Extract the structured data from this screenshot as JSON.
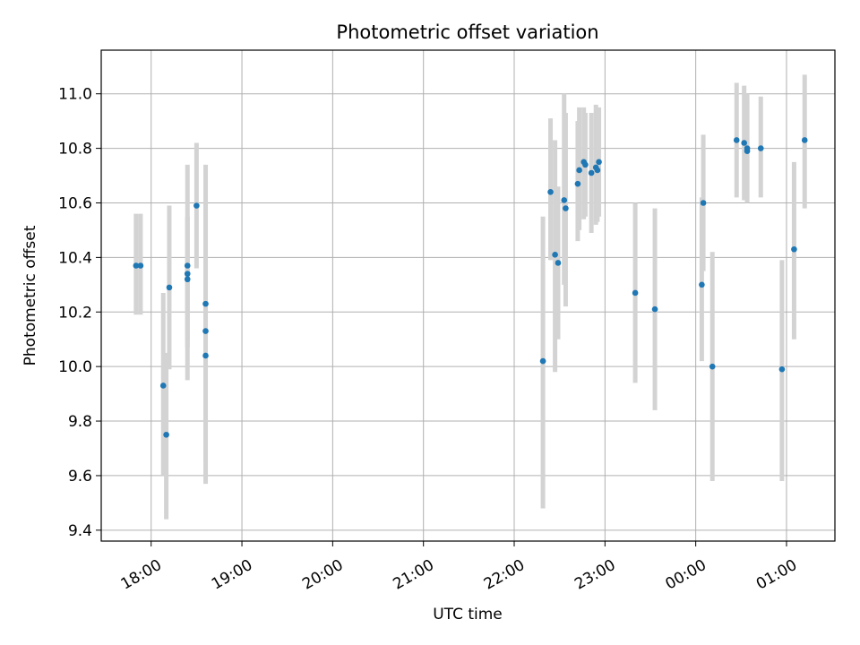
{
  "chart_data": {
    "type": "scatter",
    "title": "Photometric offset variation",
    "xlabel": "UTC time",
    "ylabel": "Photometric offset",
    "grid": true,
    "x_axis": {
      "type": "time",
      "range": [
        "17:27",
        "01:32"
      ],
      "ticks": [
        "18:00",
        "19:00",
        "20:00",
        "21:00",
        "22:00",
        "23:00",
        "00:00",
        "01:00"
      ]
    },
    "ylim": [
      9.36,
      11.16
    ],
    "y_ticks": [
      "9.4",
      "9.6",
      "9.8",
      "10.0",
      "10.2",
      "10.4",
      "10.6",
      "10.8",
      "11.0"
    ],
    "colors": {
      "marker": "#1f77b4",
      "errorbar": "#d3d3d3",
      "grid": "#b0b0b0"
    },
    "points": [
      {
        "x": "17:50",
        "y": 10.37,
        "err_low": 10.19,
        "err_high": 10.56
      },
      {
        "x": "17:53",
        "y": 10.37,
        "err_low": 10.19,
        "err_high": 10.56
      },
      {
        "x": "18:08",
        "y": 9.93,
        "err_low": 9.6,
        "err_high": 10.27
      },
      {
        "x": "18:10",
        "y": 9.75,
        "err_low": 9.44,
        "err_high": 10.05
      },
      {
        "x": "18:12",
        "y": 10.29,
        "err_low": 9.99,
        "err_high": 10.59
      },
      {
        "x": "18:24",
        "y": 10.37,
        "err_low": 9.95,
        "err_high": 10.74
      },
      {
        "x": "18:24",
        "y": 10.34,
        "err_low": 10.1,
        "err_high": 10.55
      },
      {
        "x": "18:24",
        "y": 10.32,
        "err_low": 10.07,
        "err_high": 10.55
      },
      {
        "x": "18:30",
        "y": 10.59,
        "err_low": 10.36,
        "err_high": 10.82
      },
      {
        "x": "18:36",
        "y": 10.23,
        "err_low": 9.93,
        "err_high": 10.51
      },
      {
        "x": "18:36",
        "y": 10.13,
        "err_low": 9.66,
        "err_high": 10.6
      },
      {
        "x": "18:36",
        "y": 10.04,
        "err_low": 9.57,
        "err_high": 10.74
      },
      {
        "x": "22:19",
        "y": 10.02,
        "err_low": 9.48,
        "err_high": 10.55
      },
      {
        "x": "22:24",
        "y": 10.64,
        "err_low": 10.39,
        "err_high": 10.91
      },
      {
        "x": "22:27",
        "y": 10.41,
        "err_low": 9.98,
        "err_high": 10.83
      },
      {
        "x": "22:29",
        "y": 10.38,
        "err_low": 10.1,
        "err_high": 10.66
      },
      {
        "x": "22:33",
        "y": 10.61,
        "err_low": 10.3,
        "err_high": 11.0
      },
      {
        "x": "22:34",
        "y": 10.58,
        "err_low": 10.22,
        "err_high": 10.93
      },
      {
        "x": "22:42",
        "y": 10.67,
        "err_low": 10.46,
        "err_high": 10.9
      },
      {
        "x": "22:43",
        "y": 10.72,
        "err_low": 10.5,
        "err_high": 10.95
      },
      {
        "x": "22:46",
        "y": 10.75,
        "err_low": 10.54,
        "err_high": 10.95
      },
      {
        "x": "22:47",
        "y": 10.74,
        "err_low": 10.55,
        "err_high": 10.93
      },
      {
        "x": "22:51",
        "y": 10.71,
        "err_low": 10.49,
        "err_high": 10.93
      },
      {
        "x": "22:54",
        "y": 10.73,
        "err_low": 10.52,
        "err_high": 10.96
      },
      {
        "x": "22:55",
        "y": 10.72,
        "err_low": 10.53,
        "err_high": 10.94
      },
      {
        "x": "22:56",
        "y": 10.75,
        "err_low": 10.55,
        "err_high": 10.95
      },
      {
        "x": "23:20",
        "y": 10.27,
        "err_low": 9.94,
        "err_high": 10.6
      },
      {
        "x": "23:33",
        "y": 10.21,
        "err_low": 9.84,
        "err_high": 10.58
      },
      {
        "x": "00:04",
        "y": 10.3,
        "err_low": 10.02,
        "err_high": 10.62
      },
      {
        "x": "00:05",
        "y": 10.6,
        "err_low": 10.35,
        "err_high": 10.85
      },
      {
        "x": "00:11",
        "y": 10.0,
        "err_low": 9.58,
        "err_high": 10.42
      },
      {
        "x": "00:27",
        "y": 10.83,
        "err_low": 10.62,
        "err_high": 11.04
      },
      {
        "x": "00:32",
        "y": 10.82,
        "err_low": 10.61,
        "err_high": 11.03
      },
      {
        "x": "00:34",
        "y": 10.8,
        "err_low": 10.6,
        "err_high": 11.0
      },
      {
        "x": "00:34",
        "y": 10.79,
        "err_low": 10.61,
        "err_high": 10.98
      },
      {
        "x": "00:43",
        "y": 10.8,
        "err_low": 10.62,
        "err_high": 10.99
      },
      {
        "x": "00:57",
        "y": 9.99,
        "err_low": 9.58,
        "err_high": 10.39
      },
      {
        "x": "01:05",
        "y": 10.43,
        "err_low": 10.1,
        "err_high": 10.75
      },
      {
        "x": "01:12",
        "y": 10.83,
        "err_low": 10.58,
        "err_high": 11.07
      }
    ]
  }
}
